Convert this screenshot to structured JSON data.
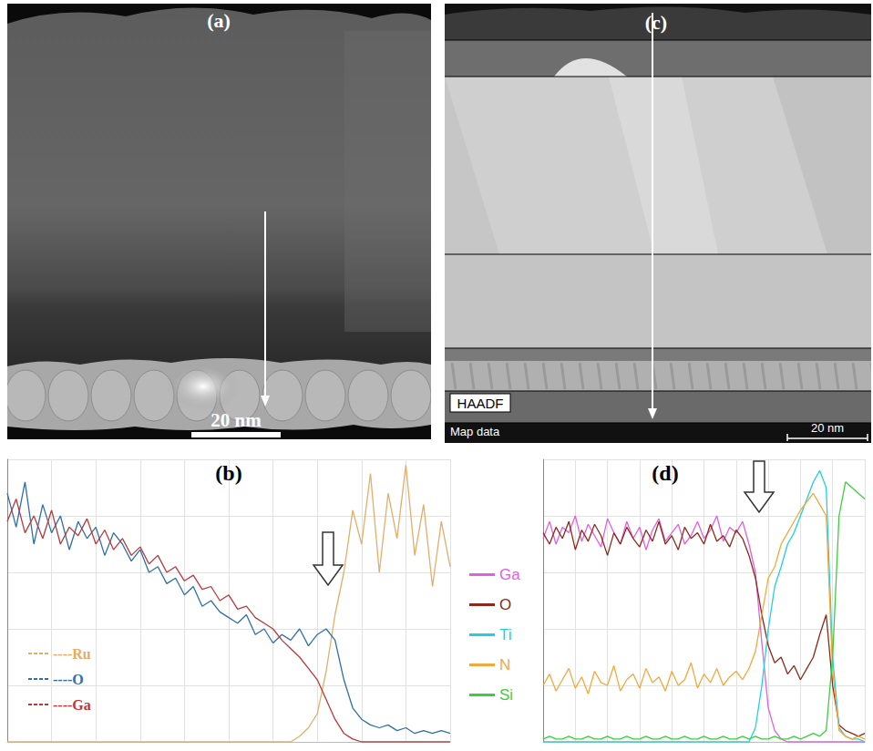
{
  "images": [
    {
      "label": "(a)",
      "scale_bar": "20 nm"
    },
    {
      "label": "(c)",
      "tags": [
        "HAADF",
        "Map data"
      ],
      "scale_bar": "20 nm"
    }
  ],
  "chart_data": [
    {
      "type": "line",
      "title": "(b)",
      "x": [
        0,
        2,
        4,
        6,
        8,
        10,
        12,
        14,
        16,
        18,
        20,
        22,
        24,
        26,
        28,
        30,
        32,
        34,
        36,
        38,
        40,
        42,
        44,
        46,
        48,
        50,
        52,
        54,
        56,
        58,
        60,
        62,
        64,
        66,
        68,
        70,
        72,
        74,
        76,
        78,
        80,
        82,
        84,
        86,
        88,
        90,
        92,
        94,
        96,
        98,
        100
      ],
      "xlim": [
        0,
        100
      ],
      "xticks": [
        0,
        10,
        20,
        30,
        40,
        50,
        60,
        70,
        80,
        90,
        100
      ],
      "ylim": [
        0,
        100
      ],
      "yticks": [
        0,
        20,
        40,
        60,
        80,
        100
      ],
      "grid": true,
      "tick_labels": false,
      "legend": "lower left",
      "series": [
        {
          "name": "----Ru",
          "color": "#e3ad6a",
          "values": [
            0,
            0,
            0,
            0,
            0,
            0,
            0,
            0,
            0,
            0,
            0,
            0,
            0,
            0,
            0,
            0,
            0,
            0,
            0,
            0,
            0,
            0,
            0,
            0,
            0,
            0,
            0,
            0,
            0,
            0,
            0,
            0,
            0,
            2,
            5,
            10,
            25,
            45,
            60,
            82,
            70,
            95,
            60,
            88,
            72,
            98,
            66,
            84,
            55,
            78,
            62
          ]
        },
        {
          "name": "----O",
          "color": "#2f6fa8",
          "values": [
            88,
            76,
            92,
            70,
            84,
            74,
            80,
            68,
            78,
            72,
            76,
            66,
            74,
            70,
            64,
            68,
            60,
            62,
            56,
            58,
            52,
            55,
            48,
            50,
            46,
            44,
            42,
            45,
            38,
            40,
            35,
            38,
            36,
            40,
            34,
            38,
            40,
            36,
            22,
            12,
            8,
            6,
            5,
            6,
            4,
            5,
            3,
            4,
            3,
            4,
            3
          ]
        },
        {
          "name": "----Ga",
          "color": "#b8393c",
          "values": [
            78,
            86,
            74,
            80,
            72,
            82,
            70,
            76,
            73,
            79,
            70,
            75,
            68,
            72,
            66,
            69,
            63,
            66,
            60,
            62,
            57,
            59,
            54,
            55,
            50,
            52,
            47,
            48,
            44,
            42,
            40,
            36,
            33,
            30,
            26,
            22,
            15,
            8,
            3,
            1,
            0,
            0,
            0,
            0,
            0,
            0,
            0,
            0,
            0,
            0,
            0
          ]
        }
      ]
    },
    {
      "type": "line",
      "title": "(d)",
      "x": [
        0,
        2,
        4,
        6,
        8,
        10,
        12,
        14,
        16,
        18,
        20,
        22,
        24,
        26,
        28,
        30,
        32,
        34,
        36,
        38,
        40,
        42,
        44,
        46,
        48,
        50,
        52,
        54,
        56,
        58,
        60,
        62,
        64,
        66,
        68,
        70,
        72,
        74,
        76,
        78,
        80,
        82,
        84,
        86,
        88,
        90,
        92,
        94,
        96,
        98,
        100
      ],
      "xlim": [
        0,
        100
      ],
      "xticks": [
        0,
        10,
        20,
        30,
        40,
        50,
        60,
        70,
        80,
        90,
        100
      ],
      "ylim": [
        0,
        100
      ],
      "yticks": [
        0,
        20,
        40,
        60,
        80,
        100
      ],
      "grid": true,
      "tick_labels": false,
      "legend": "left",
      "series": [
        {
          "name": "Ga",
          "color": "#e060e0",
          "values": [
            72,
            78,
            70,
            76,
            74,
            80,
            71,
            77,
            73,
            69,
            79,
            74,
            70,
            78,
            72,
            76,
            68,
            75,
            79,
            71,
            74,
            77,
            70,
            73,
            78,
            72,
            75,
            80,
            71,
            76,
            74,
            78,
            70,
            60,
            35,
            12,
            4,
            1,
            0,
            0,
            0,
            0,
            0,
            0,
            0,
            0,
            0,
            0,
            0,
            0,
            0
          ]
        },
        {
          "name": "O",
          "color": "#8b2a1a",
          "values": [
            74,
            70,
            76,
            72,
            78,
            68,
            75,
            71,
            77,
            73,
            66,
            74,
            70,
            76,
            72,
            69,
            75,
            71,
            78,
            70,
            73,
            68,
            76,
            72,
            74,
            70,
            77,
            71,
            73,
            69,
            75,
            72,
            66,
            58,
            45,
            34,
            28,
            30,
            24,
            27,
            22,
            26,
            30,
            38,
            45,
            20,
            6,
            4,
            3,
            2,
            3
          ]
        },
        {
          "name": "Ti",
          "color": "#20d0e0",
          "values": [
            0,
            0,
            0,
            0,
            0,
            0,
            0,
            0,
            0,
            0,
            0,
            0,
            0,
            0,
            0,
            0,
            0,
            0,
            0,
            0,
            0,
            0,
            0,
            0,
            0,
            0,
            0,
            0,
            0,
            0,
            0,
            0,
            0,
            5,
            20,
            40,
            55,
            62,
            70,
            74,
            80,
            86,
            92,
            96,
            90,
            30,
            5,
            2,
            1,
            1,
            0
          ]
        },
        {
          "name": "N",
          "color": "#f2a93b",
          "values": [
            20,
            24,
            18,
            22,
            26,
            19,
            23,
            17,
            25,
            21,
            20,
            27,
            18,
            22,
            24,
            19,
            26,
            21,
            23,
            18,
            25,
            20,
            22,
            28,
            19,
            24,
            21,
            26,
            20,
            23,
            25,
            22,
            26,
            32,
            45,
            58,
            62,
            70,
            74,
            78,
            82,
            85,
            88,
            84,
            80,
            25,
            4,
            2,
            1,
            2,
            1
          ]
        },
        {
          "name": "Si",
          "color": "#3ccf3c",
          "values": [
            1,
            2,
            1,
            1,
            2,
            1,
            1,
            2,
            1,
            1,
            2,
            1,
            1,
            2,
            1,
            1,
            2,
            1,
            1,
            2,
            1,
            1,
            2,
            1,
            1,
            2,
            1,
            1,
            2,
            1,
            1,
            2,
            1,
            2,
            1,
            1,
            2,
            1,
            1,
            2,
            1,
            2,
            3,
            2,
            4,
            30,
            80,
            92,
            90,
            88,
            86
          ]
        }
      ]
    }
  ]
}
